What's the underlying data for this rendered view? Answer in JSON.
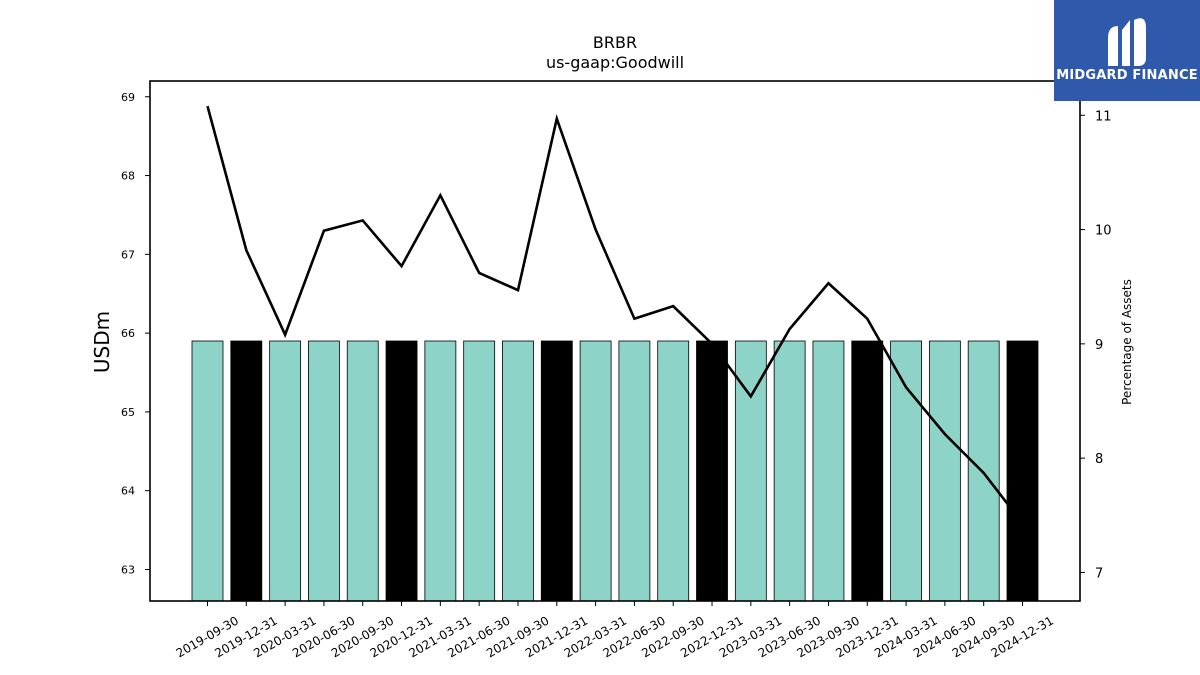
{
  "chart_data": {
    "type": "bar",
    "title": "BRBR",
    "subtitle": "us-gaap:Goodwill",
    "ylabel": "USDm",
    "ylabel_right": "Percentage of Assets",
    "ylim": [
      62.6,
      69.2
    ],
    "ylim_right": [
      6.75,
      11.3
    ],
    "yticks": [
      63,
      64,
      65,
      66,
      67,
      68,
      69
    ],
    "yticks_right": [
      7,
      8,
      9,
      10,
      11
    ],
    "categories": [
      "2019-09-30",
      "2019-12-31",
      "2020-03-31",
      "2020-06-30",
      "2020-09-30",
      "2020-12-31",
      "2021-03-31",
      "2021-06-30",
      "2021-09-30",
      "2021-12-31",
      "2022-03-31",
      "2022-06-30",
      "2022-09-30",
      "2022-12-31",
      "2023-03-31",
      "2023-06-30",
      "2023-09-30",
      "2023-12-31",
      "2024-03-31",
      "2024-06-30",
      "2024-09-30",
      "2024-12-31"
    ],
    "series": [
      {
        "axis": "left",
        "values": [
          65.9,
          65.9,
          65.9,
          65.9,
          65.9,
          65.9,
          65.9,
          65.9,
          65.9,
          65.9,
          65.9,
          65.9,
          65.9,
          65.9,
          65.9,
          65.9,
          65.9,
          65.9,
          65.9,
          65.9,
          65.9,
          65.9
        ],
        "bar_colors": [
          "#8dd3c7",
          "#000000",
          "#8dd3c7",
          "#8dd3c7",
          "#8dd3c7",
          "#000000",
          "#8dd3c7",
          "#8dd3c7",
          "#8dd3c7",
          "#000000",
          "#8dd3c7",
          "#8dd3c7",
          "#8dd3c7",
          "#000000",
          "#8dd3c7",
          "#8dd3c7",
          "#8dd3c7",
          "#000000",
          "#8dd3c7",
          "#8dd3c7",
          "#8dd3c7",
          "#000000"
        ]
      },
      {
        "axis": "right",
        "type": "line",
        "values": [
          11.08,
          9.82,
          9.08,
          9.99,
          10.08,
          9.68,
          10.3,
          9.62,
          9.47,
          10.97,
          10.0,
          9.22,
          9.33,
          9.0,
          8.54,
          9.13,
          9.53,
          9.22,
          8.62,
          8.21,
          7.87,
          7.43
        ]
      }
    ],
    "colors": {
      "bar_teal": "#8dd3c7",
      "bar_black": "#000000",
      "line": "#000000"
    },
    "grid": false,
    "legend": "none"
  },
  "logo": {
    "text": "MIDGARD FINANCE",
    "background": "#2f5aac"
  }
}
